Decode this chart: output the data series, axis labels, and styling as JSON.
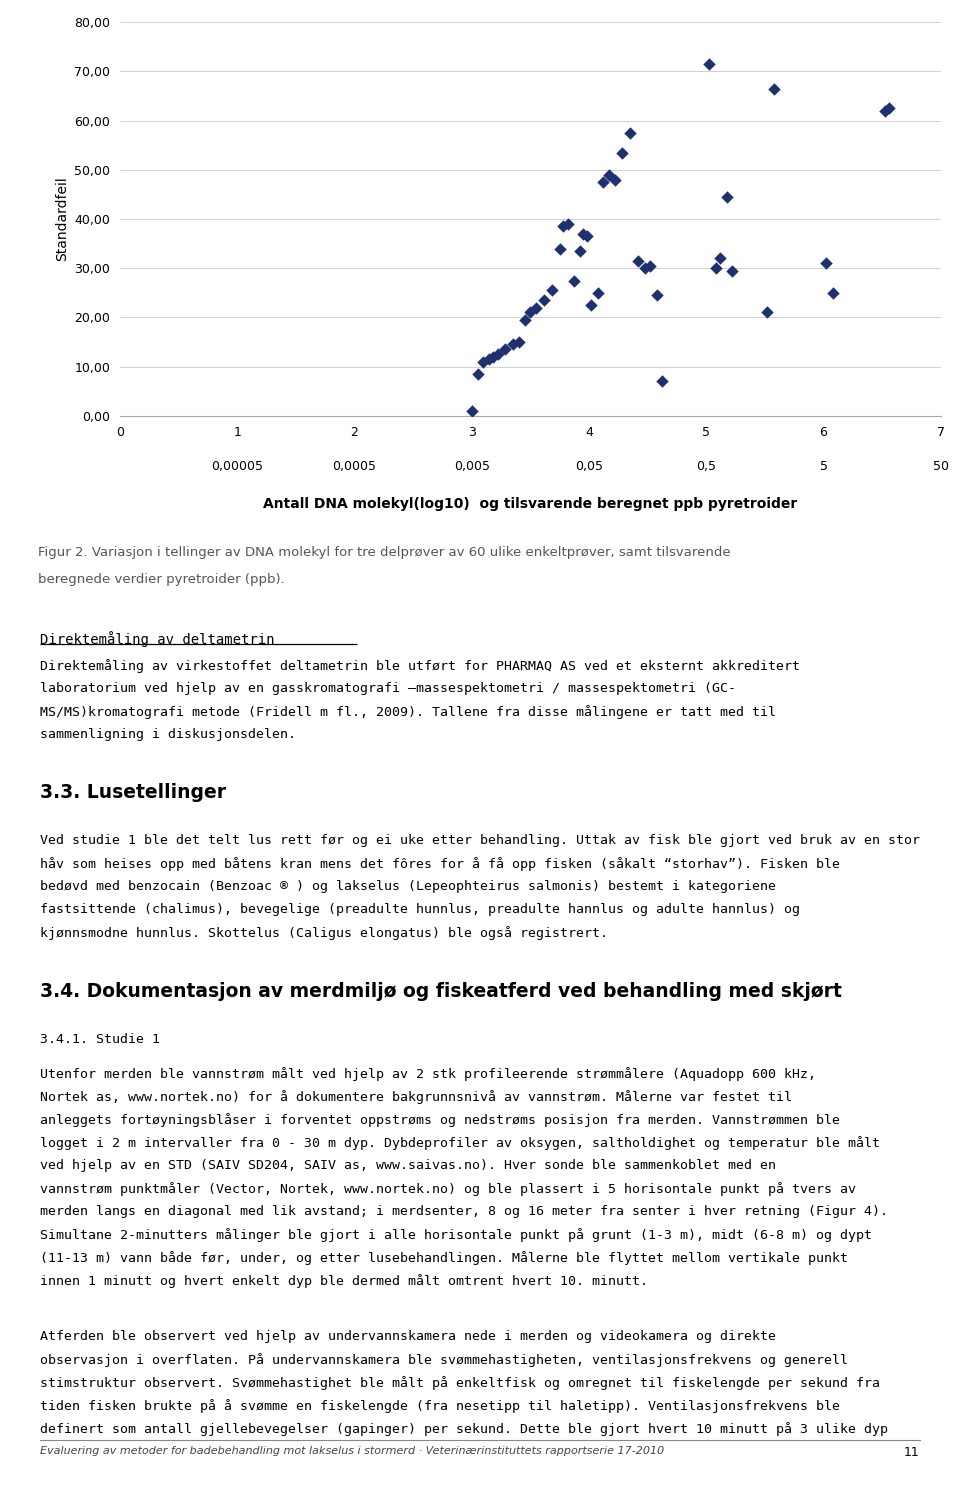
{
  "scatter_x": [
    3.0,
    3.05,
    3.1,
    3.15,
    3.18,
    3.22,
    3.28,
    3.35,
    3.4,
    3.45,
    3.5,
    3.55,
    3.62,
    3.68,
    3.75,
    3.78,
    3.82,
    3.87,
    3.92,
    3.95,
    3.98,
    4.02,
    4.08,
    4.12,
    4.17,
    4.22,
    4.28,
    4.35,
    4.42,
    4.48,
    4.52,
    4.58,
    4.62,
    5.02,
    5.08,
    5.12,
    5.18,
    5.22,
    5.52,
    5.58,
    6.02,
    6.08,
    6.52,
    6.56
  ],
  "scatter_y": [
    1.0,
    8.5,
    11.0,
    11.5,
    12.0,
    12.5,
    13.5,
    14.5,
    15.0,
    19.5,
    21.0,
    22.0,
    23.5,
    25.5,
    34.0,
    38.5,
    39.0,
    27.5,
    33.5,
    37.0,
    36.5,
    22.5,
    25.0,
    47.5,
    49.0,
    48.0,
    53.5,
    57.5,
    31.5,
    30.0,
    30.5,
    24.5,
    7.0,
    71.5,
    30.0,
    32.0,
    44.5,
    29.5,
    21.0,
    66.5,
    31.0,
    25.0,
    62.0,
    62.5
  ],
  "scatter_color": "#1F3070",
  "marker": "D",
  "marker_size": 40,
  "xlim": [
    0,
    7
  ],
  "ylim": [
    0,
    80
  ],
  "yticks": [
    0,
    10,
    20,
    30,
    40,
    50,
    60,
    70,
    80
  ],
  "ytick_labels": [
    "0,00",
    "10,00",
    "20,00",
    "30,00",
    "40,00",
    "50,00",
    "60,00",
    "70,00",
    "80,00"
  ],
  "xticks": [
    0,
    1,
    2,
    3,
    4,
    5,
    6,
    7
  ],
  "xtick_labels_top": [
    "0",
    "1",
    "2",
    "3",
    "4",
    "5",
    "6",
    "7"
  ],
  "xtick_labels_bottom": [
    "",
    "0,00005",
    "0,0005",
    "0,005",
    "0,05",
    "0,5",
    "5",
    "50"
  ],
  "xlabel": "Antall DNA molekyl(log10)  og tilsvarende beregnet ppb pyretroider",
  "ylabel": "Standardfeil",
  "fig_caption_line1": "Figur 2. Variasjon i tellinger av DNA molekyl for tre delprøver av 60 ulike enkeltprøver, samt tilsvarende",
  "fig_caption_line2": "beregnede verdier pyretroider (ppb).",
  "section_title": "Direktemåling av deltametrin",
  "para1_lines": [
    "Direktemåling av virkestoffet deltametrin ble utført for PHARMAQ AS ved et eksternt akkreditert",
    "laboratorium ved hjelp av en gasskromatografi –massespektometri / massespektometri (GC-",
    "MS/MS)kromatografi metode (Fridell m fl., 2009). Tallene fra disse målingene er tatt med til",
    "sammenligning i diskusjonsdelen."
  ],
  "section2_title": "3.3. Lusetellinger",
  "para2_lines": [
    "Ved studie 1 ble det telt lus rett før og ei uke etter behandling. Uttak av fisk ble gjort ved bruk av en stor",
    "håv som heises opp med båtens kran mens det fôres for å få opp fisken (såkalt “storhav”). Fisken ble",
    "bedøvd med benzocain (Benzoac ® ) og lakselus (Lepeophteirus salmonis) bestemt i kategoriene",
    "fastsittende (chalimus), bevegelige (preadulte hunnlus, preadulte hannlus og adulte hannlus) og",
    "kjønnsmodne hunnlus. Skottelus (Caligus elongatus) ble også registrert."
  ],
  "section3_title": "3.4. Dokumentasjon av merdmiljø og fiskeatferd ved behandling med skjørt",
  "subsection_title": "3.4.1. Studie 1",
  "para3_lines": [
    "Utenfor merden ble vannstrøm målt ved hjelp av 2 stk profileerende strømmålere (Aquadopp 600 kHz,",
    "Nortek as, www.nortek.no) for å dokumentere bakgrunnsnivå av vannstrøm. Målerne var festet til",
    "anleggets fortøyningsblåser i forventet oppstrøms og nedstrøms posisjon fra merden. Vannstrømmen ble",
    "logget i 2 m intervaller fra 0 - 30 m dyp. Dybdeprofiler av oksygen, saltholdighet og temperatur ble målt",
    "ved hjelp av en STD (SAIV SD204, SAIV as, www.saivas.no). Hver sonde ble sammenkoblet med en",
    "vannstrøm punktmåler (Vector, Nortek, www.nortek.no) og ble plassert i 5 horisontale punkt på tvers av",
    "merden langs en diagonal med lik avstand; i merdsenter, 8 og 16 meter fra senter i hver retning (Figur 4).",
    "Simultane 2-minutters målinger ble gjort i alle horisontale punkt på grunt (1-3 m), midt (6-8 m) og dypt",
    "(11-13 m) vann både før, under, og etter lusebehandlingen. Målerne ble flyttet mellom vertikale punkt",
    "innen 1 minutt og hvert enkelt dyp ble dermed målt omtrent hvert 10. minutt."
  ],
  "para4_lines": [
    "Atferden ble observert ved hjelp av undervannskamera nede i merden og videokamera og direkte",
    "observasjon i overflaten. På undervannskamera ble svømmehastigheten, ventilasjonsfrekvens og generell",
    "stimstruktur observert. Svømmehastighet ble målt på enkeltfisk og omregnet til fiskelengde per sekund fra",
    "tiden fisken brukte på å svømme en fiskelengde (fra nesetipp til haletipp). Ventilasjonsfrekvens ble",
    "definert som antall gjellebevegelser (gapinger) per sekund. Dette ble gjort hvert 10 minutt på 3 ulike dyp"
  ],
  "footer": "Evaluering av metoder for badebehandling mot lakselus i stormerd · Veterinærinstituttets rapportserie 17-2010",
  "page_number": "11",
  "bg_color": "#ffffff",
  "grid_color": "#d0d0d0",
  "font_color": "#000000",
  "caption_color": "#555555"
}
